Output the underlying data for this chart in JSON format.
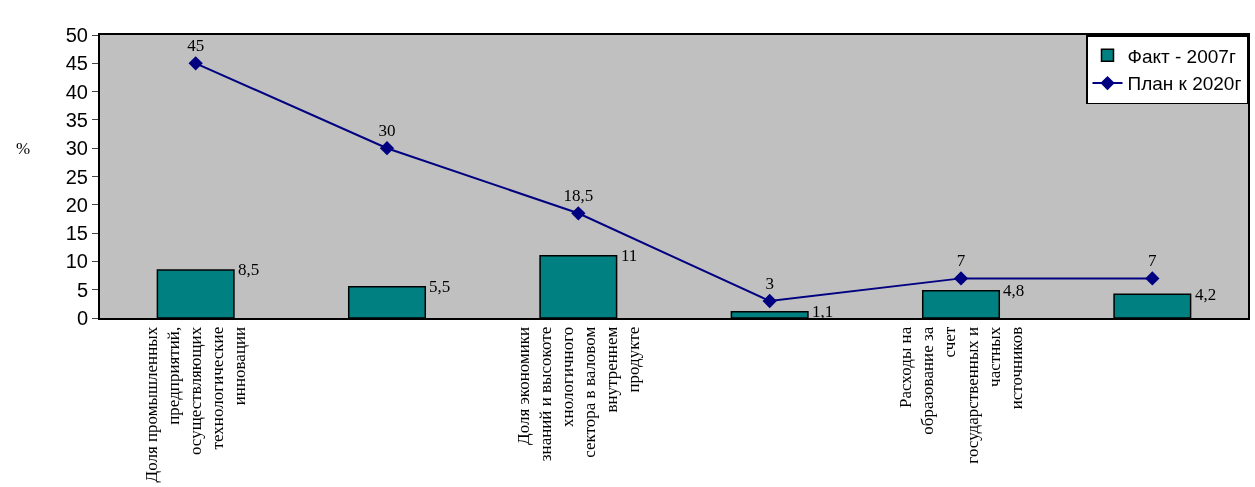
{
  "chart_data": {
    "type": "bar",
    "ylabel": "%",
    "categories": [
      "Доля промышленных предприятий, осуществляющих технологические инновации",
      null,
      "Доля экономики знаний и высокотехнологичного сектора в валовом внутреннем продукте",
      null,
      "Расходы на образование за счет государственных и частных источников",
      null
    ],
    "series": [
      {
        "name": "Факт - 2007г",
        "color": "#008080",
        "values": [
          8.5,
          5.5,
          11,
          1.1,
          4.8,
          4.2
        ],
        "value_labels": [
          "8,5",
          "5,5",
          "11",
          "1,1",
          "4,8",
          "4,2"
        ]
      },
      {
        "name": "План к 2020г",
        "type": "line",
        "color": "#000080",
        "marker": "diamond",
        "values": [
          45,
          30,
          18.5,
          3,
          7,
          7
        ],
        "value_labels": [
          "45",
          "30",
          "18,5",
          "3",
          "7",
          "7"
        ]
      }
    ],
    "ylim": [
      0,
      50
    ],
    "yticks": [
      0,
      5,
      10,
      15,
      20,
      25,
      30,
      35,
      40,
      45,
      50
    ],
    "grid": false,
    "legend": "top right"
  }
}
